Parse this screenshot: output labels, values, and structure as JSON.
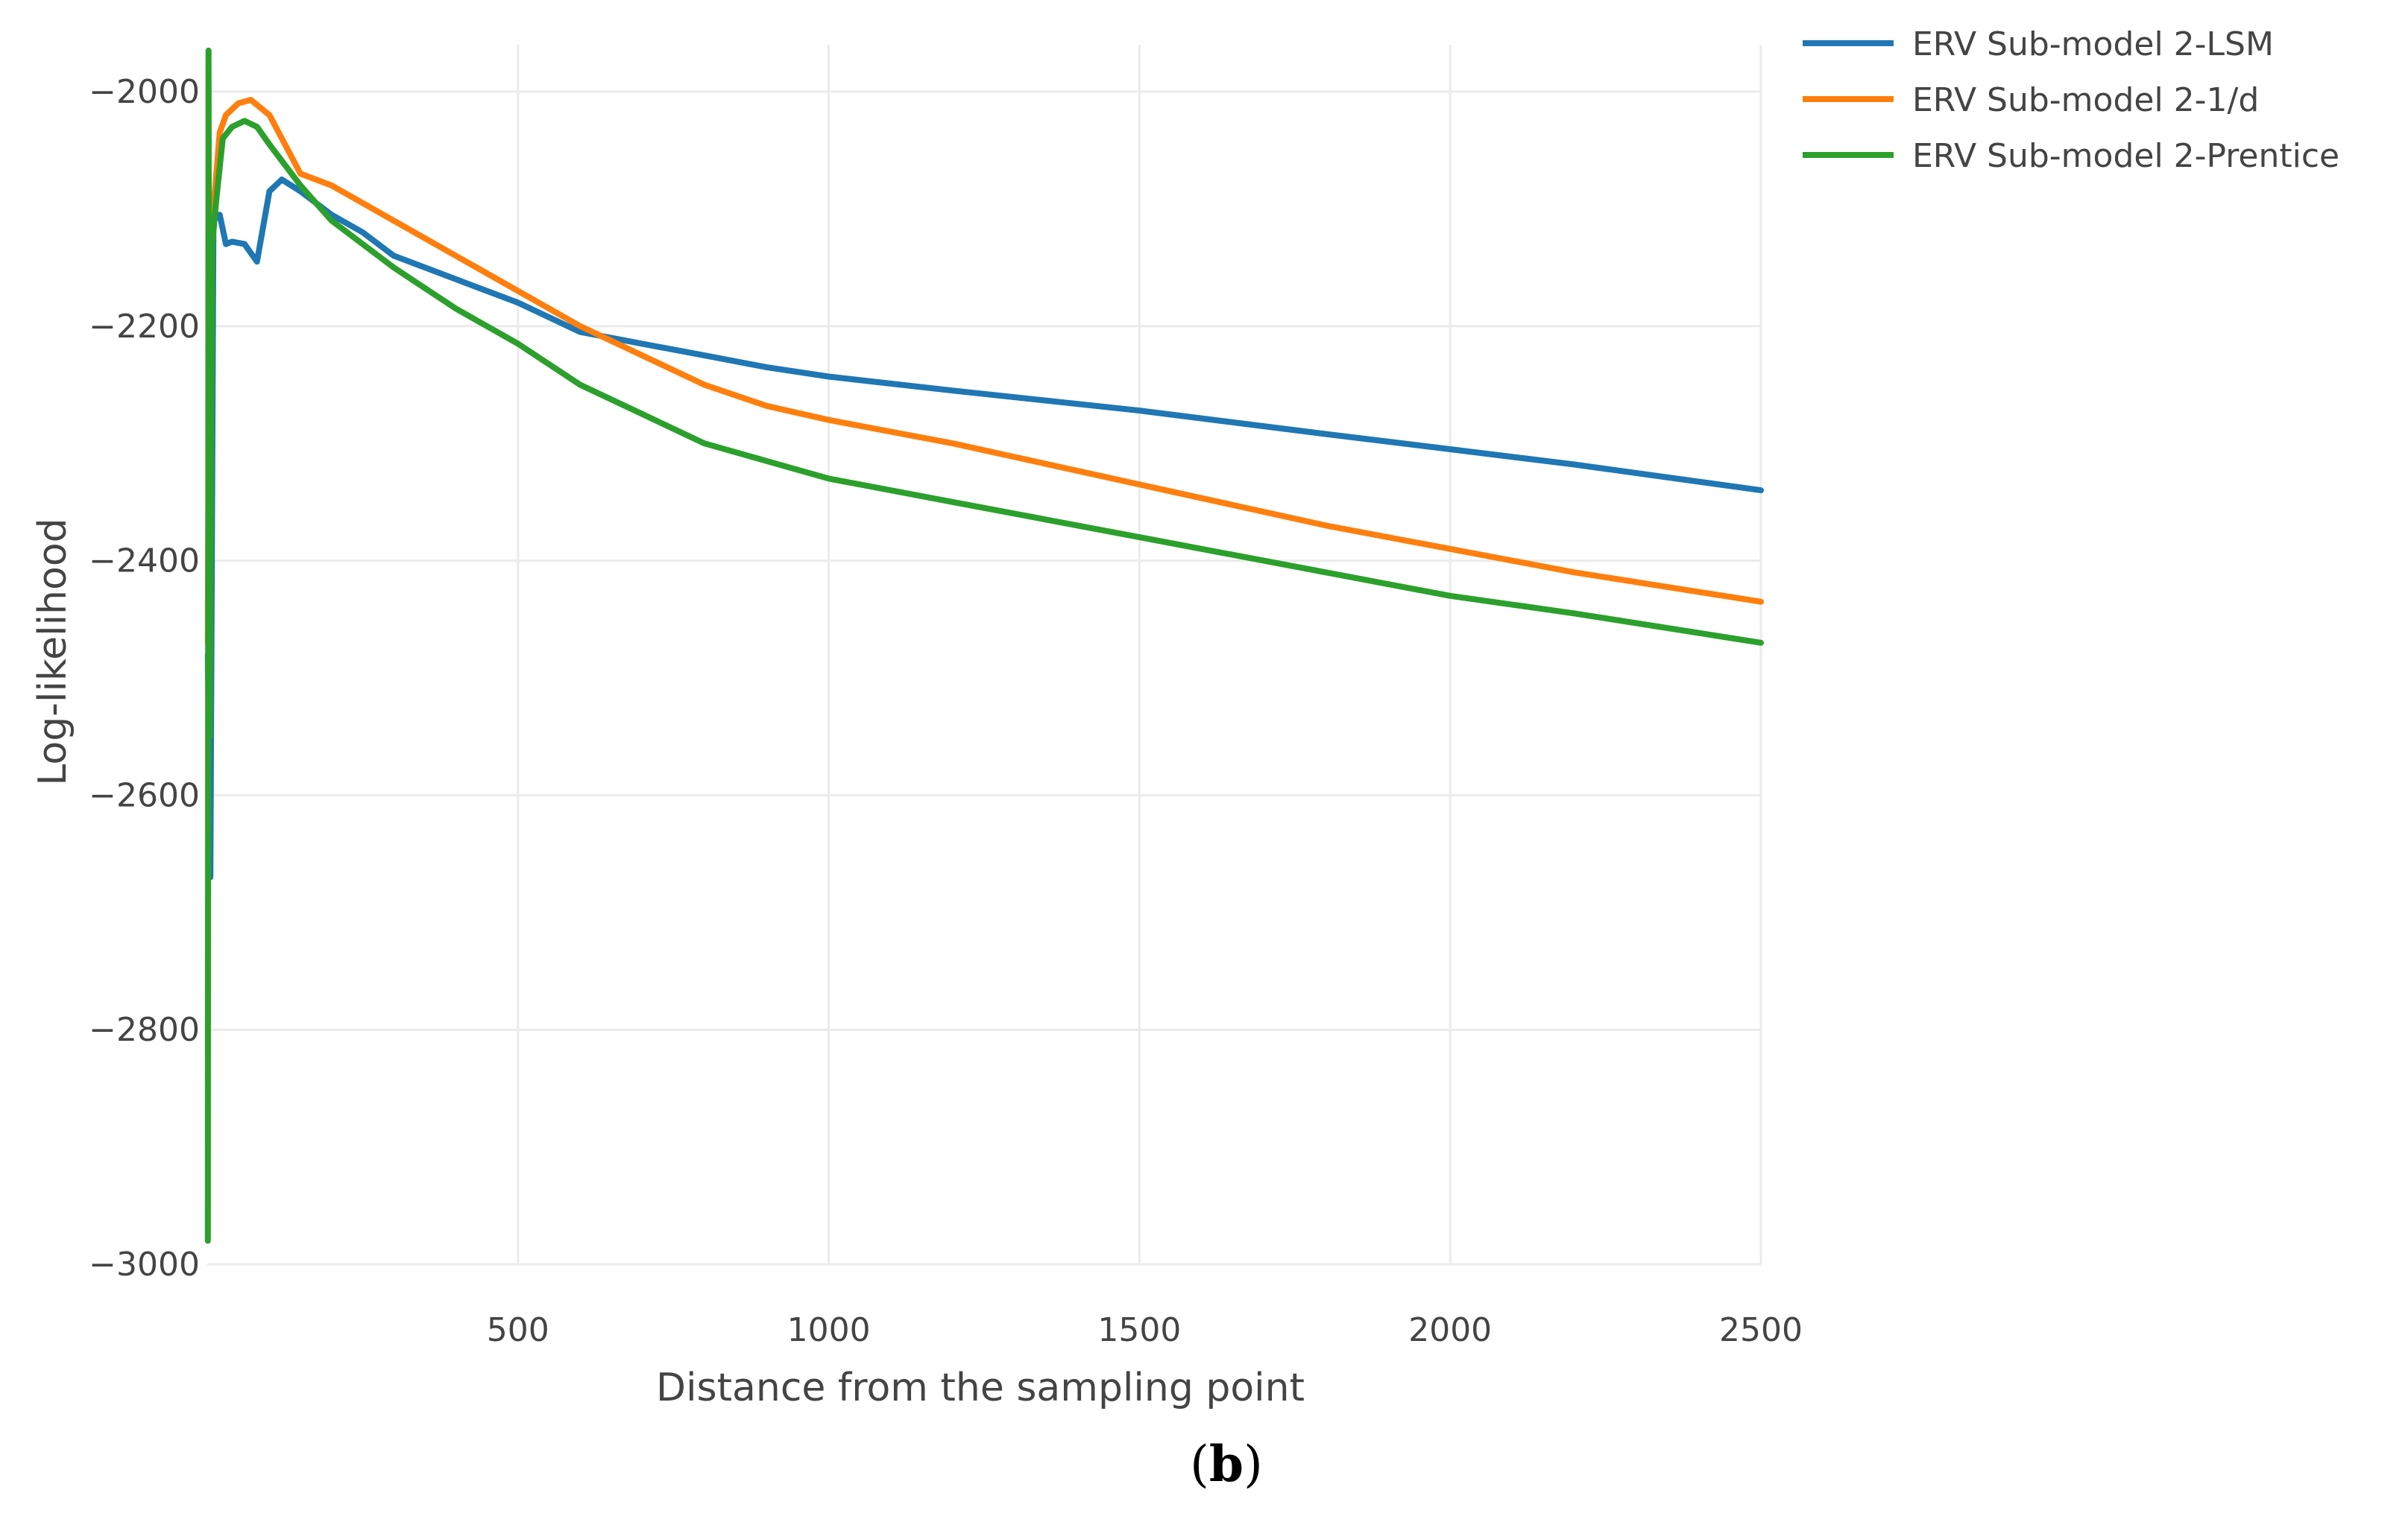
{
  "chart_data": {
    "type": "line",
    "xlabel": "Distance from the sampling point",
    "ylabel": "Log-likelihood",
    "panel_label_open": "(",
    "panel_label_letter": "b",
    "panel_label_close": ")",
    "xlim": [
      0,
      2500
    ],
    "ylim": [
      -3000,
      -1960
    ],
    "x_ticks": [
      500,
      1000,
      1500,
      2000,
      2500
    ],
    "y_ticks": [
      -2000,
      -2200,
      -2400,
      -2600,
      -2800,
      -3000
    ],
    "x_tick_labels": [
      "500",
      "1000",
      "1500",
      "2000",
      "2500"
    ],
    "y_tick_labels": [
      "−2000",
      "−2200",
      "−2400",
      "−2600",
      "−2800",
      "−3000"
    ],
    "grid": true,
    "legend_position": "top-right",
    "series": [
      {
        "name": "ERV Sub-model 2-LSM",
        "color": "#1f77b4",
        "x": [
          1,
          5,
          10,
          20,
          30,
          40,
          60,
          80,
          100,
          120,
          150,
          200,
          250,
          300,
          400,
          500,
          600,
          700,
          800,
          900,
          1000,
          1200,
          1500,
          1800,
          2000,
          2200,
          2500
        ],
        "y": [
          -2480,
          -2670,
          -2110,
          -2105,
          -2130,
          -2128,
          -2130,
          -2145,
          -2085,
          -2075,
          -2085,
          -2105,
          -2120,
          -2140,
          -2160,
          -2180,
          -2205,
          -2215,
          -2225,
          -2235,
          -2243,
          -2255,
          -2272,
          -2292,
          -2305,
          -2318,
          -2340
        ]
      },
      {
        "name": "ERV Sub-model 2-1/d",
        "color": "#ff7f0e",
        "x": [
          1,
          3,
          6,
          10,
          20,
          30,
          50,
          70,
          100,
          150,
          200,
          300,
          400,
          500,
          600,
          700,
          800,
          900,
          1000,
          1200,
          1500,
          1800,
          2000,
          2200,
          2500
        ],
        "y": [
          -2470,
          -2200,
          -2120,
          -2100,
          -2035,
          -2020,
          -2010,
          -2007,
          -2020,
          -2070,
          -2080,
          -2110,
          -2140,
          -2170,
          -2200,
          -2225,
          -2250,
          -2268,
          -2280,
          -2300,
          -2335,
          -2370,
          -2390,
          -2410,
          -2435
        ]
      },
      {
        "name": "ERV Sub-model 2-Prentice",
        "color": "#2ca02c",
        "x": [
          1,
          2,
          4,
          8,
          15,
          25,
          40,
          60,
          80,
          100,
          150,
          200,
          300,
          400,
          500,
          600,
          700,
          800,
          900,
          1000,
          1200,
          1500,
          1800,
          2000,
          2200,
          2500
        ],
        "y": [
          -2980,
          -1965,
          -2550,
          -2130,
          -2090,
          -2040,
          -2030,
          -2025,
          -2030,
          -2045,
          -2080,
          -2110,
          -2150,
          -2185,
          -2215,
          -2250,
          -2275,
          -2300,
          -2315,
          -2330,
          -2350,
          -2380,
          -2410,
          -2430,
          -2445,
          -2470
        ]
      }
    ]
  }
}
